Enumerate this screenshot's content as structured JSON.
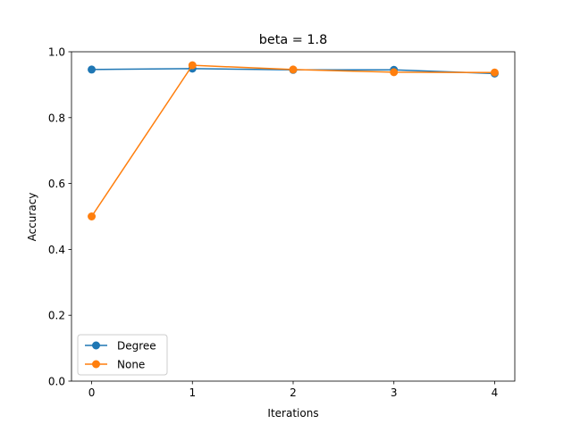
{
  "chart_data": {
    "type": "line",
    "title": "beta = 1.8",
    "xlabel": "Iterations",
    "ylabel": "Accuracy",
    "x": [
      0,
      1,
      2,
      3,
      4
    ],
    "xlim": [
      -0.2,
      4.2
    ],
    "ylim": [
      0.0,
      1.0
    ],
    "xticks": [
      "0",
      "1",
      "2",
      "3",
      "4"
    ],
    "yticks": [
      "0.0",
      "0.2",
      "0.4",
      "0.6",
      "0.8",
      "1.0"
    ],
    "grid": false,
    "legend_position": "lower-left",
    "series": [
      {
        "name": "Degree",
        "color": "#1f77b4",
        "marker": "circle",
        "values": [
          0.946,
          0.949,
          0.945,
          0.945,
          0.934
        ]
      },
      {
        "name": "None",
        "color": "#ff7f0e",
        "marker": "circle",
        "values": [
          0.5,
          0.959,
          0.946,
          0.938,
          0.937
        ]
      }
    ]
  }
}
